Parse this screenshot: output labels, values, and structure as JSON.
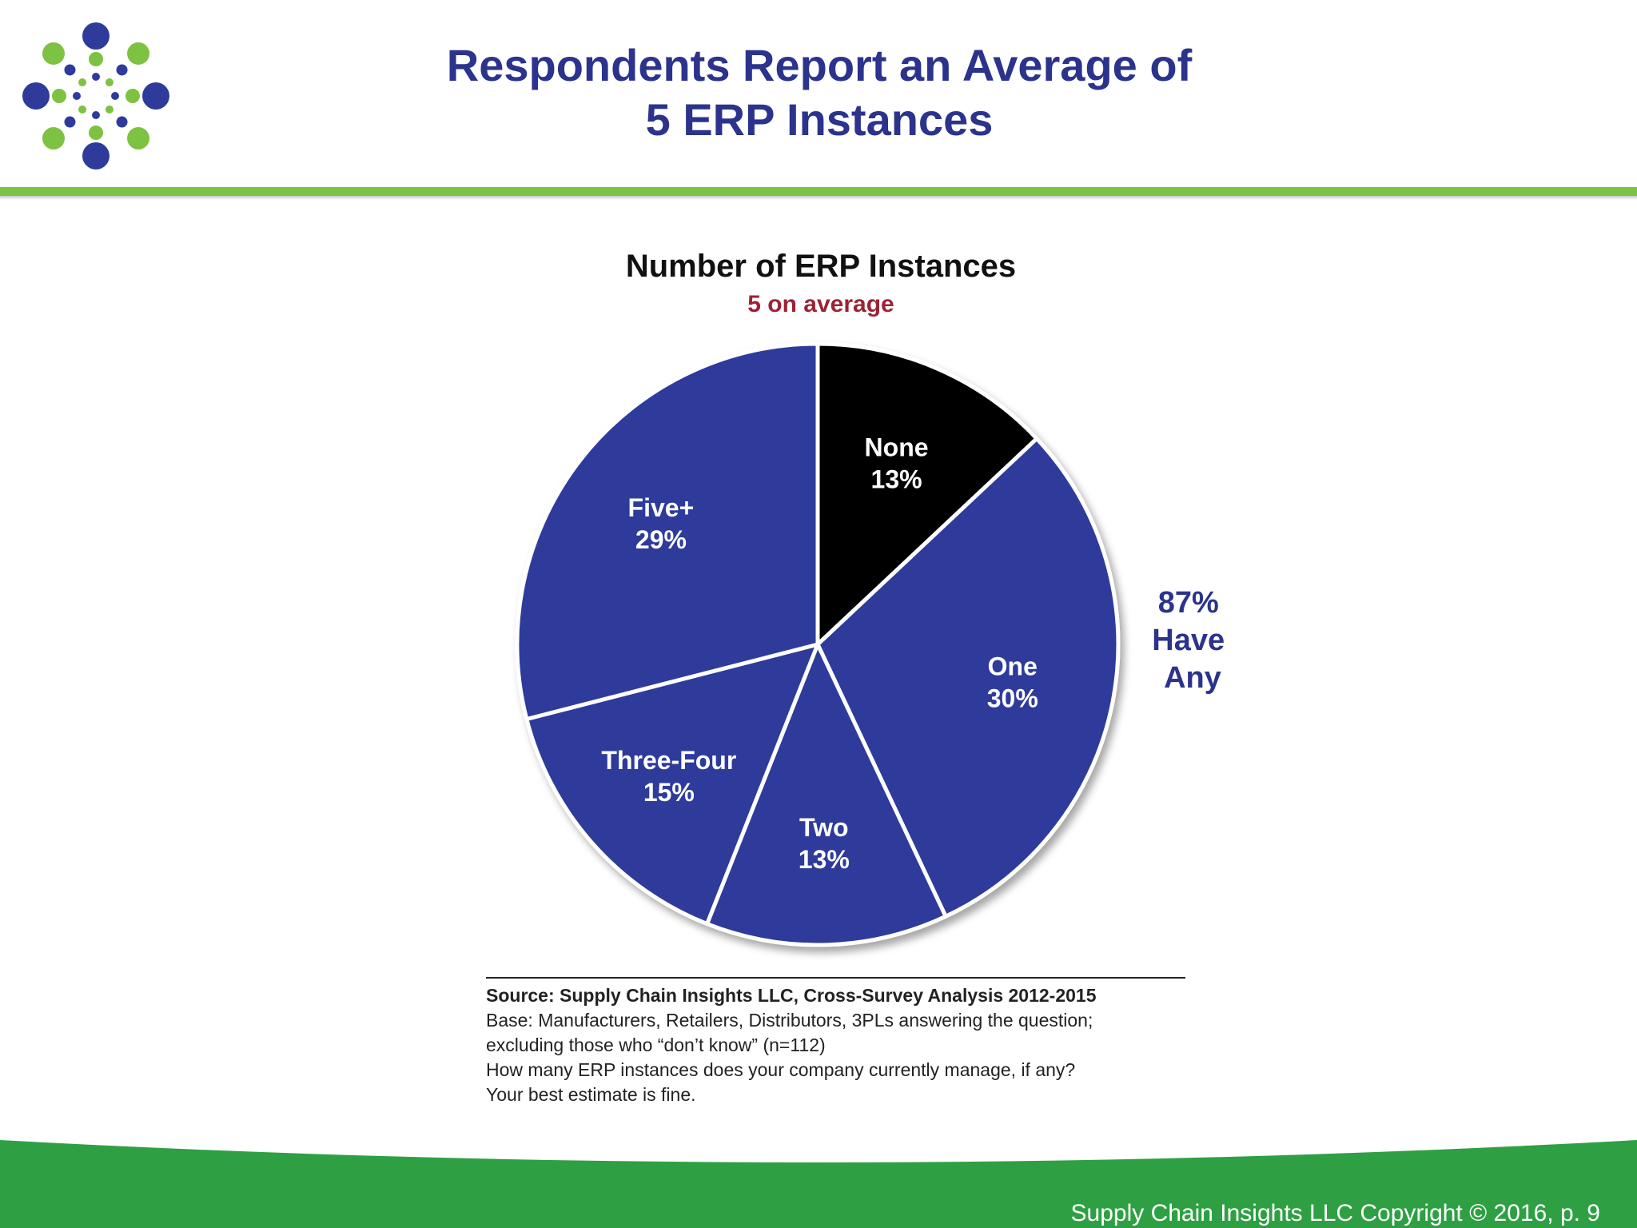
{
  "header": {
    "title_line1": "Respondents Report an Average of",
    "title_line2": "5 ERP Instances"
  },
  "colors": {
    "slice_blue": "#2f3b9b",
    "slice_black": "#000000",
    "title_navy": "#2b338c",
    "subtitle_red": "#9b2335",
    "rule_green": "#7dc242",
    "footer_green": "#2ea043"
  },
  "logo": {
    "icon": "dot-circle-logo-icon"
  },
  "chart_data": {
    "type": "pie",
    "title": "Number of ERP Instances",
    "subtitle": "5 on average",
    "slices": [
      {
        "label": "None",
        "value": 13,
        "display": "13%",
        "color": "#000000"
      },
      {
        "label": "One",
        "value": 30,
        "display": "30%",
        "color": "#2f3b9b"
      },
      {
        "label": "Two",
        "value": 13,
        "display": "13%",
        "color": "#2f3b9b"
      },
      {
        "label": "Three-Four",
        "value": 15,
        "display": "15%",
        "color": "#2f3b9b"
      },
      {
        "label": "Five+",
        "value": 29,
        "display": "29%",
        "color": "#2f3b9b"
      }
    ],
    "annotation": [
      "87%",
      "Have",
      "Any"
    ]
  },
  "source": {
    "line1": "Source:  Supply Chain Insights LLC, Cross-Survey Analysis 2012-2015",
    "line2": "Base:  Manufacturers, Retailers, Distributors, 3PLs answering the question;",
    "line3": "excluding those who “don’t know” (n=112)",
    "line4": "How many ERP instances does your company currently manage, if any?",
    "line5": "Your best estimate is fine."
  },
  "footer": {
    "copyright": "Supply Chain Insights LLC Copyright © 2016, p. 9"
  }
}
